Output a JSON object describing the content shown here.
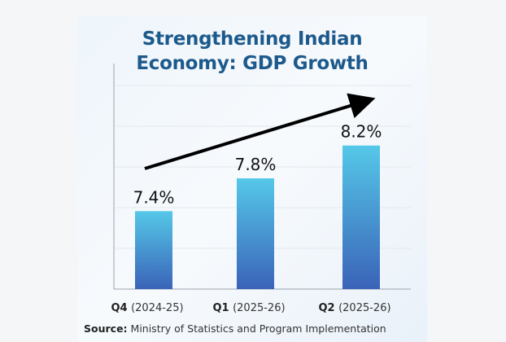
{
  "chart_data": {
    "type": "bar",
    "title_lines": [
      "Strengthening Indian",
      "Economy: GDP Growth"
    ],
    "categories": [
      {
        "quarter": "Q4",
        "year": "(2024-25)"
      },
      {
        "quarter": "Q1",
        "year": "(2025-26)"
      },
      {
        "quarter": "Q2",
        "year": "(2025-26)"
      }
    ],
    "values": [
      7.4,
      7.8,
      8.2
    ],
    "data_labels": [
      "7.4%",
      "7.8%",
      "8.2%"
    ],
    "ylim": [
      6.45,
      9.2
    ],
    "grid": true,
    "trend_arrow": "upward",
    "colors": {
      "bar_top": "#55c8e8",
      "bar_bottom": "#3a63b8",
      "title": "#1d5a8c",
      "arrow": "#000000"
    }
  },
  "source": {
    "label": "Source:",
    "text": "Ministry of Statistics and Program Implementation"
  }
}
